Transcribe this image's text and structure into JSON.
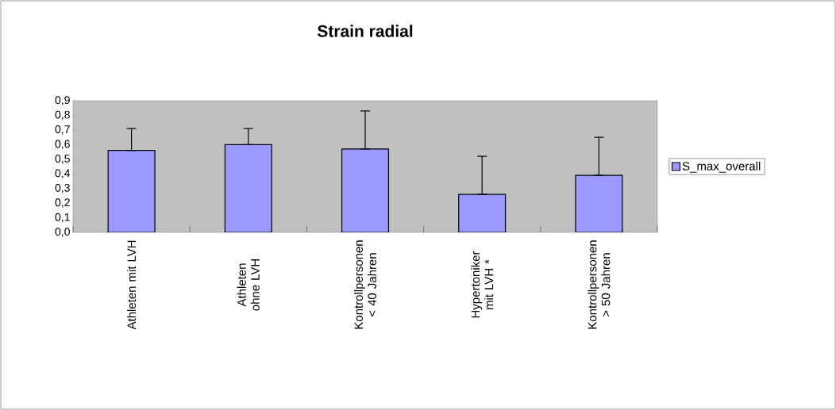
{
  "chart_data": {
    "type": "bar",
    "title": "Strain radial",
    "categories": [
      "Athleten mit LVH",
      "Athleten ohne LVH",
      "Kontrollpersonen < 40 Jahren",
      "Hypertoniker mit LVH *",
      "Kontrollpersonen > 50 Jahren"
    ],
    "series": [
      {
        "name": "S_max_overall",
        "color": "#9999ff",
        "values": [
          0.56,
          0.6,
          0.57,
          0.26,
          0.39
        ],
        "errors": [
          [
            0.56,
            0.71
          ],
          [
            0.6,
            0.71
          ],
          [
            0.57,
            0.83
          ],
          [
            0.26,
            0.52
          ],
          [
            0.39,
            0.65
          ]
        ]
      }
    ],
    "ylim": [
      0,
      0.9
    ],
    "yticks": [
      {
        "value": 0,
        "label": "0,0"
      },
      {
        "value": 0.1,
        "label": "0,1"
      },
      {
        "value": 0.2,
        "label": "0,2"
      },
      {
        "value": 0.3,
        "label": "0,3"
      },
      {
        "value": 0.4,
        "label": "0,4"
      },
      {
        "value": 0.5,
        "label": "0,5"
      },
      {
        "value": 0.6,
        "label": "0,6"
      },
      {
        "value": 0.7,
        "label": "0,7"
      },
      {
        "value": 0.8,
        "label": "0,8"
      },
      {
        "value": 0.9,
        "label": "0,9"
      }
    ],
    "grid": false,
    "legend": "right"
  }
}
